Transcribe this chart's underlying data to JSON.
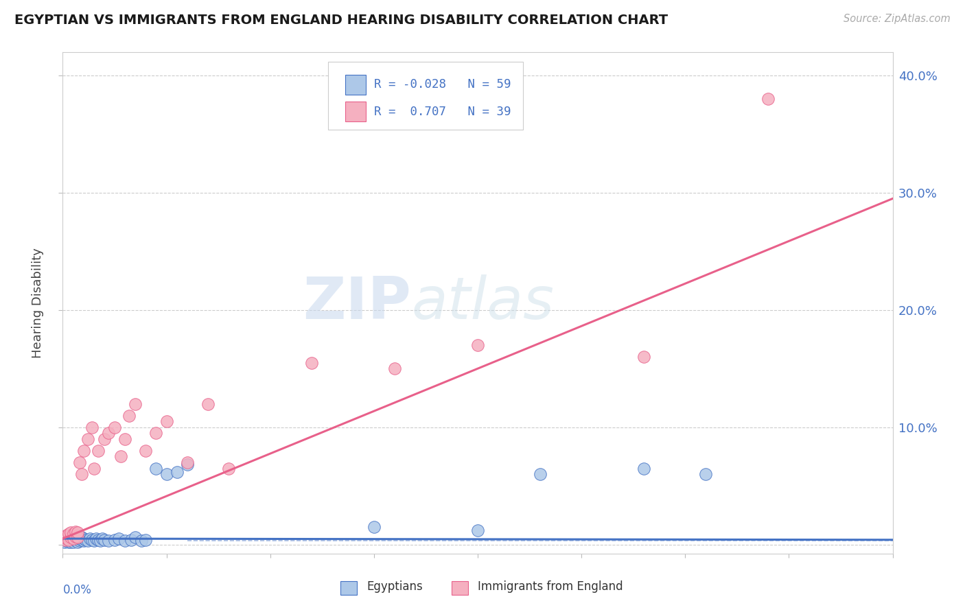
{
  "title": "EGYPTIAN VS IMMIGRANTS FROM ENGLAND HEARING DISABILITY CORRELATION CHART",
  "source": "Source: ZipAtlas.com",
  "ylabel": "Hearing Disability",
  "xlim": [
    0.0,
    0.4
  ],
  "ylim": [
    -0.008,
    0.42
  ],
  "plot_ylim": [
    -0.008,
    0.42
  ],
  "egyptians_R": -0.028,
  "egyptians_N": 59,
  "england_R": 0.707,
  "england_N": 39,
  "egyptians_color": "#adc8e8",
  "england_color": "#f5b0c0",
  "egyptians_line_color": "#4472c4",
  "england_line_color": "#e8608a",
  "watermark_zip": "ZIP",
  "watermark_atlas": "atlas",
  "yticks": [
    0.0,
    0.1,
    0.2,
    0.3,
    0.4
  ],
  "ytick_labels_right": [
    "",
    "10.0%",
    "20.0%",
    "30.0%",
    "40.0%"
  ],
  "egyptians_x": [
    0.001,
    0.001,
    0.001,
    0.002,
    0.002,
    0.002,
    0.002,
    0.003,
    0.003,
    0.003,
    0.003,
    0.004,
    0.004,
    0.004,
    0.004,
    0.005,
    0.005,
    0.005,
    0.005,
    0.006,
    0.006,
    0.006,
    0.007,
    0.007,
    0.007,
    0.008,
    0.008,
    0.008,
    0.009,
    0.009,
    0.01,
    0.01,
    0.011,
    0.012,
    0.013,
    0.014,
    0.015,
    0.016,
    0.017,
    0.018,
    0.019,
    0.02,
    0.022,
    0.025,
    0.027,
    0.03,
    0.033,
    0.035,
    0.038,
    0.04,
    0.045,
    0.05,
    0.055,
    0.06,
    0.15,
    0.2,
    0.23,
    0.28,
    0.31
  ],
  "egyptians_y": [
    0.003,
    0.005,
    0.002,
    0.004,
    0.006,
    0.003,
    0.007,
    0.004,
    0.002,
    0.005,
    0.007,
    0.003,
    0.005,
    0.002,
    0.006,
    0.004,
    0.006,
    0.002,
    0.007,
    0.003,
    0.005,
    0.007,
    0.004,
    0.006,
    0.002,
    0.003,
    0.005,
    0.007,
    0.004,
    0.006,
    0.003,
    0.005,
    0.004,
    0.003,
    0.005,
    0.004,
    0.003,
    0.005,
    0.004,
    0.003,
    0.005,
    0.004,
    0.003,
    0.004,
    0.005,
    0.003,
    0.004,
    0.006,
    0.003,
    0.004,
    0.065,
    0.06,
    0.062,
    0.068,
    0.015,
    0.012,
    0.06,
    0.065,
    0.06
  ],
  "england_x": [
    0.001,
    0.001,
    0.002,
    0.002,
    0.003,
    0.003,
    0.004,
    0.004,
    0.005,
    0.005,
    0.006,
    0.006,
    0.007,
    0.007,
    0.008,
    0.009,
    0.01,
    0.012,
    0.014,
    0.015,
    0.017,
    0.02,
    0.022,
    0.025,
    0.028,
    0.03,
    0.032,
    0.035,
    0.04,
    0.045,
    0.05,
    0.06,
    0.07,
    0.08,
    0.12,
    0.16,
    0.2,
    0.28,
    0.34
  ],
  "england_y": [
    0.004,
    0.007,
    0.005,
    0.008,
    0.004,
    0.009,
    0.006,
    0.01,
    0.005,
    0.009,
    0.007,
    0.011,
    0.006,
    0.01,
    0.07,
    0.06,
    0.08,
    0.09,
    0.1,
    0.065,
    0.08,
    0.09,
    0.095,
    0.1,
    0.075,
    0.09,
    0.11,
    0.12,
    0.08,
    0.095,
    0.105,
    0.07,
    0.12,
    0.065,
    0.155,
    0.15,
    0.17,
    0.16,
    0.38
  ],
  "eg_trend_x0": 0.0,
  "eg_trend_y0": 0.005,
  "eg_trend_x1": 0.4,
  "eg_trend_y1": 0.004,
  "en_trend_x0": 0.0,
  "en_trend_y0": 0.005,
  "en_trend_x1": 0.4,
  "en_trend_y1": 0.295
}
